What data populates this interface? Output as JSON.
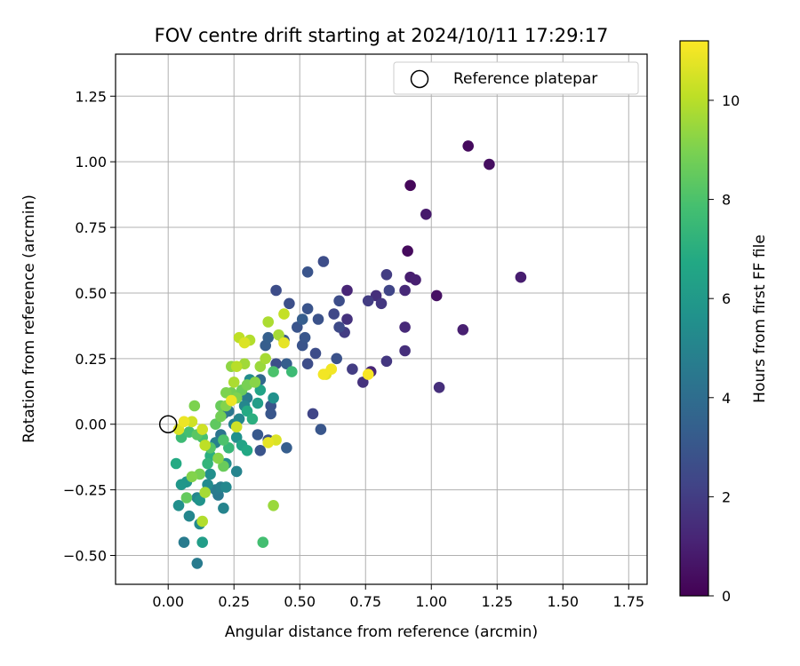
{
  "chart_data": {
    "type": "scatter",
    "title": "FOV centre drift starting at 2024/10/11 17:29:17",
    "xlabel": "Angular distance from reference (arcmin)",
    "ylabel": "Rotation from reference (arcmin)",
    "xlim": [
      -0.2,
      1.82
    ],
    "ylim": [
      -0.61,
      1.41
    ],
    "xticks": [
      0.0,
      0.25,
      0.5,
      0.75,
      1.0,
      1.25,
      1.5,
      1.75
    ],
    "xtick_labels": [
      "0.00",
      "0.25",
      "0.50",
      "0.75",
      "1.00",
      "1.25",
      "1.50",
      "1.75"
    ],
    "yticks": [
      -0.5,
      -0.25,
      0.0,
      0.25,
      0.5,
      0.75,
      1.0,
      1.25
    ],
    "ytick_labels": [
      "−0.50",
      "−0.25",
      "0.00",
      "0.25",
      "0.50",
      "0.75",
      "1.00",
      "1.25"
    ],
    "grid": true,
    "legend": {
      "placement": "top-right",
      "entries": [
        "Reference platepar"
      ]
    },
    "reference_point": {
      "x": 0.0,
      "y": 0.0,
      "marker": "hollow-circle"
    },
    "colorbar": {
      "label": "Hours from first FF file",
      "colormap": "viridis",
      "min": 0,
      "max": 11.2,
      "ticks": [
        0,
        2,
        4,
        6,
        8,
        10
      ],
      "tick_labels": [
        "0",
        "2",
        "4",
        "6",
        "8",
        "10"
      ]
    },
    "colormap_stops": [
      "#440154",
      "#482475",
      "#414487",
      "#355f8d",
      "#2a788e",
      "#21918c",
      "#22a884",
      "#44bf70",
      "#7ad151",
      "#bddf26",
      "#fde725"
    ],
    "series": [
      {
        "points": [
          [
            1.14,
            1.06,
            0.3
          ],
          [
            1.22,
            0.99,
            0.4
          ],
          [
            0.92,
            0.91,
            0.2
          ],
          [
            0.98,
            0.8,
            0.8
          ],
          [
            0.91,
            0.66,
            0.3
          ],
          [
            1.34,
            0.56,
            0.9
          ],
          [
            0.92,
            0.56,
            0.9
          ],
          [
            0.94,
            0.55,
            1.0
          ],
          [
            1.02,
            0.49,
            0.5
          ],
          [
            0.9,
            0.51,
            1.3
          ],
          [
            1.12,
            0.36,
            1.0
          ],
          [
            0.9,
            0.37,
            1.3
          ],
          [
            0.9,
            0.28,
            1.5
          ],
          [
            1.03,
            0.14,
            1.5
          ],
          [
            0.83,
            0.57,
            2.0
          ],
          [
            0.84,
            0.51,
            2.3
          ],
          [
            0.79,
            0.49,
            1.5
          ],
          [
            0.81,
            0.46,
            1.8
          ],
          [
            0.76,
            0.47,
            2.0
          ],
          [
            0.68,
            0.51,
            1.2
          ],
          [
            0.65,
            0.47,
            2.6
          ],
          [
            0.68,
            0.4,
            1.6
          ],
          [
            0.63,
            0.42,
            2.4
          ],
          [
            0.65,
            0.37,
            2.5
          ],
          [
            0.67,
            0.35,
            2.0
          ],
          [
            0.64,
            0.25,
            2.8
          ],
          [
            0.7,
            0.21,
            2.0
          ],
          [
            0.74,
            0.16,
            1.6
          ],
          [
            0.77,
            0.2,
            1.2
          ],
          [
            0.83,
            0.24,
            1.8
          ],
          [
            0.59,
            0.62,
            2.6
          ],
          [
            0.53,
            0.58,
            2.9
          ],
          [
            0.41,
            0.51,
            2.6
          ],
          [
            0.46,
            0.46,
            2.7
          ],
          [
            0.53,
            0.44,
            2.9
          ],
          [
            0.57,
            0.4,
            2.8
          ],
          [
            0.51,
            0.4,
            3.3
          ],
          [
            0.49,
            0.37,
            2.9
          ],
          [
            0.52,
            0.33,
            3.0
          ],
          [
            0.51,
            0.3,
            2.9
          ],
          [
            0.56,
            0.27,
            2.6
          ],
          [
            0.53,
            0.23,
            2.6
          ],
          [
            0.44,
            0.32,
            3.1
          ],
          [
            0.45,
            0.23,
            3.3
          ],
          [
            0.41,
            0.23,
            2.7
          ],
          [
            0.55,
            0.04,
            2.3
          ],
          [
            0.58,
            -0.02,
            3.0
          ],
          [
            0.38,
            0.33,
            3.4
          ],
          [
            0.37,
            0.3,
            3.3
          ],
          [
            0.39,
            0.07,
            2.9
          ],
          [
            0.39,
            0.04,
            3.0
          ],
          [
            0.38,
            -0.06,
            2.8
          ],
          [
            0.35,
            -0.1,
            2.9
          ],
          [
            0.34,
            -0.04,
            3.1
          ],
          [
            0.45,
            -0.09,
            3.3
          ],
          [
            0.35,
            0.17,
            3.8
          ],
          [
            0.4,
            0.1,
            5.6
          ],
          [
            0.34,
            0.08,
            6.2
          ],
          [
            0.31,
            0.17,
            5.4
          ],
          [
            0.3,
            0.1,
            4.6
          ],
          [
            0.29,
            0.07,
            5.1
          ],
          [
            0.27,
            0.02,
            5.1
          ],
          [
            0.25,
            0.0,
            4.8
          ],
          [
            0.23,
            0.05,
            4.4
          ],
          [
            0.21,
            0.04,
            3.7
          ],
          [
            0.2,
            -0.04,
            4.3
          ],
          [
            0.18,
            -0.07,
            4.9
          ],
          [
            0.26,
            -0.05,
            5.6
          ],
          [
            0.28,
            -0.08,
            6.5
          ],
          [
            0.3,
            -0.1,
            6.7
          ],
          [
            0.26,
            -0.18,
            5.0
          ],
          [
            0.22,
            -0.15,
            5.4
          ],
          [
            0.2,
            -0.24,
            4.8
          ],
          [
            0.22,
            -0.24,
            5.2
          ],
          [
            0.19,
            -0.27,
            4.5
          ],
          [
            0.18,
            -0.25,
            4.6
          ],
          [
            0.16,
            -0.19,
            5.5
          ],
          [
            0.15,
            -0.23,
            5.3
          ],
          [
            0.12,
            -0.29,
            5.7
          ],
          [
            0.11,
            -0.28,
            5.1
          ],
          [
            0.07,
            -0.22,
            5.8
          ],
          [
            0.05,
            -0.23,
            5.9
          ],
          [
            0.04,
            -0.31,
            5.5
          ],
          [
            0.08,
            -0.35,
            5.1
          ],
          [
            0.12,
            -0.38,
            5.3
          ],
          [
            0.06,
            -0.45,
            4.6
          ],
          [
            0.13,
            -0.45,
            6.2
          ],
          [
            0.11,
            -0.53,
            4.6
          ],
          [
            0.21,
            -0.32,
            5.0
          ],
          [
            0.03,
            -0.15,
            6.8
          ],
          [
            0.05,
            -0.05,
            7.6
          ],
          [
            0.08,
            -0.03,
            7.8
          ],
          [
            0.11,
            -0.04,
            8.3
          ],
          [
            0.13,
            -0.05,
            7.9
          ],
          [
            0.16,
            -0.09,
            8.2
          ],
          [
            0.19,
            -0.13,
            9.2
          ],
          [
            0.21,
            -0.16,
            8.6
          ],
          [
            0.18,
            0.0,
            8.4
          ],
          [
            0.2,
            0.03,
            8.8
          ],
          [
            0.22,
            0.07,
            9.1
          ],
          [
            0.24,
            0.12,
            8.8
          ],
          [
            0.26,
            0.1,
            9.0
          ],
          [
            0.28,
            0.13,
            8.6
          ],
          [
            0.3,
            0.15,
            8.9
          ],
          [
            0.33,
            0.16,
            9.2
          ],
          [
            0.35,
            0.22,
            9.5
          ],
          [
            0.37,
            0.25,
            9.7
          ],
          [
            0.38,
            0.39,
            9.8
          ],
          [
            0.42,
            0.34,
            9.7
          ],
          [
            0.44,
            0.42,
            10.2
          ],
          [
            0.27,
            0.33,
            10.1
          ],
          [
            0.29,
            0.31,
            10.6
          ],
          [
            0.31,
            0.32,
            9.9
          ],
          [
            0.26,
            0.22,
            10.0
          ],
          [
            0.29,
            0.23,
            9.6
          ],
          [
            0.24,
            0.22,
            9.3
          ],
          [
            0.25,
            0.16,
            9.8
          ],
          [
            0.22,
            0.12,
            9.0
          ],
          [
            0.2,
            0.07,
            8.6
          ],
          [
            0.1,
            0.07,
            9.0
          ],
          [
            0.09,
            0.01,
            10.4
          ],
          [
            0.06,
            0.01,
            10.9
          ],
          [
            0.04,
            -0.02,
            10.6
          ],
          [
            0.13,
            -0.02,
            10.4
          ],
          [
            0.14,
            -0.08,
            10.1
          ],
          [
            0.12,
            -0.19,
            8.9
          ],
          [
            0.14,
            -0.26,
            9.7
          ],
          [
            0.13,
            -0.37,
            9.9
          ],
          [
            0.09,
            -0.2,
            9.1
          ],
          [
            0.07,
            -0.28,
            8.5
          ],
          [
            0.26,
            -0.01,
            10.4
          ],
          [
            0.24,
            0.09,
            10.9
          ],
          [
            0.4,
            -0.31,
            9.5
          ],
          [
            0.36,
            -0.45,
            7.8
          ],
          [
            0.4,
            0.2,
            8.0
          ],
          [
            0.47,
            0.2,
            7.6
          ],
          [
            0.32,
            0.02,
            7.0
          ],
          [
            0.35,
            0.13,
            6.5
          ],
          [
            0.3,
            0.05,
            6.8
          ],
          [
            0.38,
            -0.07,
            10.8
          ],
          [
            0.41,
            -0.06,
            10.6
          ],
          [
            0.44,
            0.31,
            10.8
          ],
          [
            0.59,
            0.19,
            11.0
          ],
          [
            0.62,
            0.21,
            11.0
          ],
          [
            0.76,
            0.19,
            11.1
          ],
          [
            0.6,
            0.19,
            10.7
          ],
          [
            0.23,
            -0.09,
            7.4
          ],
          [
            0.21,
            -0.06,
            8.0
          ],
          [
            0.16,
            -0.12,
            7.0
          ],
          [
            0.15,
            -0.15,
            7.3
          ]
        ]
      }
    ]
  }
}
